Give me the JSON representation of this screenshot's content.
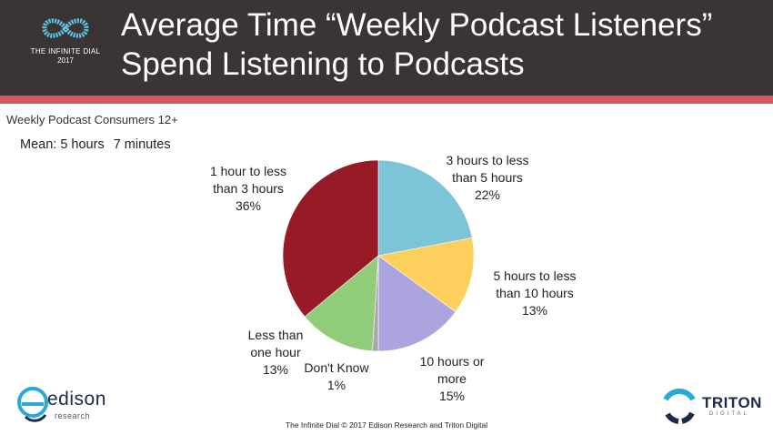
{
  "header": {
    "logo_title": "THE INFINITE DIAL",
    "logo_year": "2017",
    "title_line1": "Average Time “Weekly Podcast Listeners”",
    "title_line2": "Spend Listening to Podcasts",
    "colors": {
      "band": "#3a3436",
      "stripe": "#d65a5c"
    }
  },
  "subtitle": "Weekly Podcast Consumers 12+",
  "mean": {
    "label": "Mean: 5 hours",
    "minutes": "7 minutes"
  },
  "chart_data": {
    "type": "pie",
    "title": "",
    "slices": [
      {
        "label_lines": [
          "3 hours to less",
          "than 5 hours"
        ],
        "value": 22,
        "value_label": "22%",
        "color": "#7ec4d8"
      },
      {
        "label_lines": [
          "5 hours to less",
          "than 10 hours"
        ],
        "value": 13,
        "value_label": "13%",
        "color": "#fdd05e"
      },
      {
        "label_lines": [
          "10 hours or",
          "more"
        ],
        "value": 15,
        "value_label": "15%",
        "color": "#aba4df"
      },
      {
        "label_lines": [
          "Don't Know"
        ],
        "value": 1,
        "value_label": "1%",
        "color": "#a8a8a8"
      },
      {
        "label_lines": [
          "Less than",
          "one hour"
        ],
        "value": 13,
        "value_label": "13%",
        "color": "#90cc7a"
      },
      {
        "label_lines": [
          "1 hour to less",
          "than 3 hours"
        ],
        "value": 36,
        "value_label": "36%",
        "color": "#971b26"
      }
    ],
    "start": "12 o'clock, clockwise"
  },
  "footer": "The Infinite Dial  © 2017 Edison Research and Triton Digital",
  "logos": {
    "edison_name": "edison",
    "edison_sub": "research",
    "triton_name": "TRITON",
    "triton_sub": "DIGITAL"
  }
}
